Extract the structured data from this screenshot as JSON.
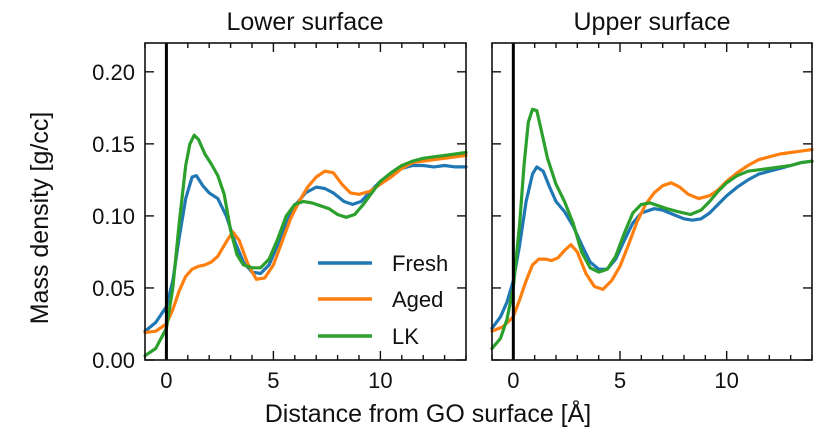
{
  "chart_data": {
    "type": "line",
    "ylabel": "Mass density [g/cc]",
    "xlabel": "Distance from GO surface [Å]",
    "xlim": [
      -1,
      14
    ],
    "ylim": [
      0,
      0.22
    ],
    "xticks": [
      0,
      5,
      10
    ],
    "yticks": [
      0.0,
      0.05,
      0.1,
      0.15,
      0.2
    ],
    "ytick_labels": [
      "0.00",
      "0.05",
      "0.10",
      "0.15",
      "0.20"
    ],
    "xtick_labels": [
      "0",
      "5",
      "10"
    ],
    "grid": false,
    "reference_line_x": 0,
    "legend": {
      "placement": "lower-right of left panel",
      "entries": [
        {
          "name": "Fresh",
          "color": "#1f77b4"
        },
        {
          "name": "Aged",
          "color": "#ff7f0e"
        },
        {
          "name": "LK",
          "color": "#2ca02c"
        }
      ]
    },
    "panels": [
      {
        "title": "Lower surface",
        "series": [
          {
            "name": "Fresh",
            "color": "#1f77b4",
            "x": [
              -1,
              -0.5,
              0,
              0.3,
              0.6,
              0.9,
              1.2,
              1.4,
              1.7,
              2.0,
              2.4,
              2.8,
              3.2,
              3.6,
              4.0,
              4.4,
              4.8,
              5.2,
              5.6,
              6.0,
              6.5,
              7.0,
              7.4,
              7.8,
              8.3,
              8.7,
              9.1,
              9.6,
              10.0,
              10.5,
              11.0,
              11.5,
              12.0,
              12.5,
              13.0,
              13.5,
              14.0
            ],
            "y": [
              0.02,
              0.026,
              0.037,
              0.055,
              0.085,
              0.112,
              0.127,
              0.128,
              0.121,
              0.116,
              0.112,
              0.1,
              0.082,
              0.068,
              0.061,
              0.06,
              0.066,
              0.08,
              0.095,
              0.107,
              0.116,
              0.12,
              0.119,
              0.116,
              0.11,
              0.108,
              0.11,
              0.118,
              0.124,
              0.128,
              0.133,
              0.135,
              0.135,
              0.134,
              0.135,
              0.134,
              0.134
            ]
          },
          {
            "name": "Aged",
            "color": "#ff7f0e",
            "x": [
              -1,
              -0.5,
              0,
              0.3,
              0.6,
              0.9,
              1.2,
              1.5,
              1.8,
              2.1,
              2.4,
              2.8,
              3.1,
              3.4,
              3.8,
              4.2,
              4.6,
              5.0,
              5.4,
              5.8,
              6.2,
              6.6,
              7.0,
              7.4,
              7.8,
              8.2,
              8.6,
              9.0,
              9.5,
              10.0,
              10.5,
              11.0,
              11.5,
              12.0,
              12.5,
              13.0,
              13.5,
              14.0
            ],
            "y": [
              0.019,
              0.02,
              0.025,
              0.035,
              0.048,
              0.058,
              0.063,
              0.065,
              0.066,
              0.068,
              0.072,
              0.082,
              0.089,
              0.083,
              0.067,
              0.056,
              0.057,
              0.066,
              0.082,
              0.098,
              0.11,
              0.12,
              0.127,
              0.131,
              0.13,
              0.122,
              0.116,
              0.115,
              0.117,
              0.122,
              0.127,
              0.133,
              0.137,
              0.138,
              0.139,
              0.14,
              0.141,
              0.142
            ]
          },
          {
            "name": "LK",
            "color": "#2ca02c",
            "x": [
              -1,
              -0.5,
              0,
              0.3,
              0.6,
              0.9,
              1.1,
              1.3,
              1.5,
              1.8,
              2.1,
              2.4,
              2.7,
              3.0,
              3.3,
              3.6,
              4.0,
              4.4,
              4.8,
              5.2,
              5.6,
              6.0,
              6.4,
              6.8,
              7.2,
              7.6,
              8.0,
              8.4,
              8.8,
              9.2,
              9.6,
              10.0,
              10.5,
              11.0,
              11.5,
              12.0,
              12.5,
              13.0,
              13.5,
              14.0
            ],
            "y": [
              0.003,
              0.008,
              0.022,
              0.05,
              0.095,
              0.135,
              0.15,
              0.156,
              0.153,
              0.143,
              0.136,
              0.128,
              0.115,
              0.09,
              0.073,
              0.066,
              0.064,
              0.064,
              0.07,
              0.084,
              0.1,
              0.108,
              0.11,
              0.109,
              0.107,
              0.105,
              0.101,
              0.099,
              0.101,
              0.108,
              0.116,
              0.124,
              0.13,
              0.135,
              0.138,
              0.14,
              0.141,
              0.142,
              0.143,
              0.144
            ]
          }
        ]
      },
      {
        "title": "Upper surface",
        "series": [
          {
            "name": "Fresh",
            "color": "#1f77b4",
            "x": [
              -1,
              -0.6,
              -0.3,
              0,
              0.3,
              0.6,
              0.9,
              1.1,
              1.4,
              1.7,
              2.0,
              2.4,
              2.8,
              3.2,
              3.6,
              4.0,
              4.4,
              4.8,
              5.2,
              5.6,
              6.0,
              6.6,
              7.0,
              7.5,
              8.0,
              8.4,
              8.8,
              9.2,
              9.6,
              10.0,
              10.5,
              11.0,
              11.5,
              12.0,
              12.5,
              13.0,
              13.5,
              14.0
            ],
            "y": [
              0.022,
              0.03,
              0.04,
              0.055,
              0.08,
              0.11,
              0.129,
              0.134,
              0.131,
              0.12,
              0.11,
              0.103,
              0.093,
              0.08,
              0.068,
              0.063,
              0.063,
              0.07,
              0.083,
              0.095,
              0.102,
              0.105,
              0.104,
              0.101,
              0.098,
              0.097,
              0.098,
              0.102,
              0.108,
              0.114,
              0.12,
              0.125,
              0.129,
              0.131,
              0.133,
              0.135,
              0.137,
              0.138
            ]
          },
          {
            "name": "Aged",
            "color": "#ff7f0e",
            "x": [
              -1,
              -0.5,
              0,
              0.3,
              0.6,
              0.9,
              1.2,
              1.5,
              1.8,
              2.1,
              2.4,
              2.7,
              3.0,
              3.4,
              3.8,
              4.2,
              4.6,
              5.0,
              5.4,
              5.8,
              6.2,
              6.6,
              7.0,
              7.4,
              7.8,
              8.2,
              8.7,
              9.2,
              9.6,
              10.0,
              10.5,
              11.0,
              11.5,
              12.0,
              12.5,
              13.0,
              13.5,
              14.0
            ],
            "y": [
              0.02,
              0.023,
              0.03,
              0.042,
              0.055,
              0.066,
              0.07,
              0.07,
              0.069,
              0.071,
              0.076,
              0.08,
              0.075,
              0.06,
              0.051,
              0.049,
              0.055,
              0.065,
              0.08,
              0.096,
              0.108,
              0.116,
              0.121,
              0.123,
              0.12,
              0.115,
              0.112,
              0.114,
              0.118,
              0.124,
              0.13,
              0.135,
              0.139,
              0.141,
              0.143,
              0.144,
              0.145,
              0.146
            ]
          },
          {
            "name": "LK",
            "color": "#2ca02c",
            "x": [
              -1,
              -0.6,
              -0.3,
              0,
              0.3,
              0.5,
              0.7,
              0.9,
              1.1,
              1.3,
              1.6,
              2.0,
              2.4,
              2.8,
              3.2,
              3.6,
              4.0,
              4.4,
              4.8,
              5.2,
              5.6,
              6.0,
              6.4,
              6.8,
              7.2,
              7.7,
              8.3,
              8.8,
              9.2,
              9.6,
              10.0,
              10.5,
              11.0,
              11.5,
              12.0,
              12.5,
              13.0,
              13.5,
              14.0
            ],
            "y": [
              0.008,
              0.015,
              0.028,
              0.05,
              0.095,
              0.135,
              0.165,
              0.174,
              0.173,
              0.16,
              0.14,
              0.122,
              0.11,
              0.095,
              0.075,
              0.064,
              0.061,
              0.063,
              0.072,
              0.088,
              0.102,
              0.108,
              0.109,
              0.107,
              0.105,
              0.103,
              0.101,
              0.104,
              0.11,
              0.117,
              0.123,
              0.128,
              0.131,
              0.132,
              0.133,
              0.134,
              0.135,
              0.137,
              0.138
            ]
          }
        ]
      }
    ]
  }
}
